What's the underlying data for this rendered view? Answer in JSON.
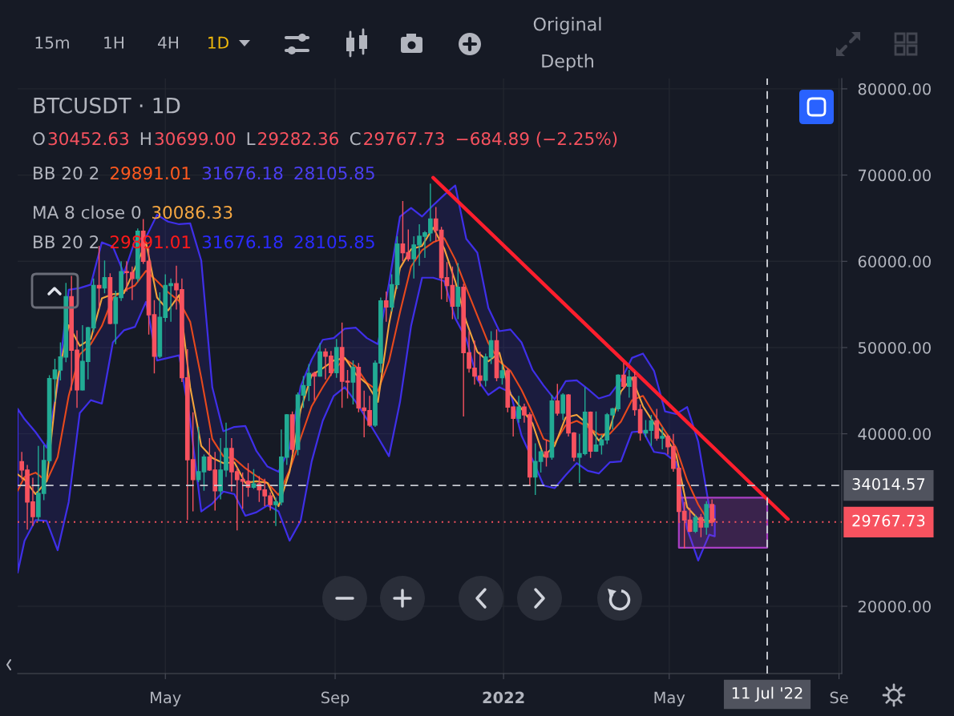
{
  "chart_data": {
    "type": "candlestick",
    "title": "BTCUSDT · 1D",
    "x": [
      "2021-01-17",
      "2021-01-21",
      "2021-01-25",
      "2021-01-29",
      "2021-02-02",
      "2021-02-06",
      "2021-02-10",
      "2021-02-14",
      "2021-02-18",
      "2021-02-22",
      "2021-02-26",
      "2021-03-02",
      "2021-03-06",
      "2021-03-10",
      "2021-03-14",
      "2021-03-18",
      "2021-03-22",
      "2021-03-26",
      "2021-03-30",
      "2021-04-03",
      "2021-04-07",
      "2021-04-11",
      "2021-04-15",
      "2021-04-19",
      "2021-04-23",
      "2021-04-27",
      "2021-05-01",
      "2021-05-05",
      "2021-05-09",
      "2021-05-13",
      "2021-05-17",
      "2021-05-21",
      "2021-05-25",
      "2021-05-29",
      "2021-06-02",
      "2021-06-06",
      "2021-06-10",
      "2021-06-14",
      "2021-06-18",
      "2021-06-22",
      "2021-06-26",
      "2021-06-30",
      "2021-07-04",
      "2021-07-08",
      "2021-07-12",
      "2021-07-16",
      "2021-07-20",
      "2021-07-24",
      "2021-07-28",
      "2021-08-01",
      "2021-08-05",
      "2021-08-09",
      "2021-08-13",
      "2021-08-17",
      "2021-08-21",
      "2021-08-25",
      "2021-08-29",
      "2021-09-02",
      "2021-09-06",
      "2021-09-10",
      "2021-09-14",
      "2021-09-18",
      "2021-09-22",
      "2021-09-26",
      "2021-09-30",
      "2021-10-04",
      "2021-10-08",
      "2021-10-12",
      "2021-10-16",
      "2021-10-20",
      "2021-10-24",
      "2021-10-28",
      "2021-11-01",
      "2021-11-05",
      "2021-11-09",
      "2021-11-13",
      "2021-11-17",
      "2021-11-21",
      "2021-11-25",
      "2021-11-29",
      "2021-12-03",
      "2021-12-07",
      "2021-12-11",
      "2021-12-15",
      "2021-12-19",
      "2021-12-23",
      "2021-12-27",
      "2021-12-31",
      "2022-01-04",
      "2022-01-08",
      "2022-01-12",
      "2022-01-16",
      "2022-01-20",
      "2022-01-24",
      "2022-01-28",
      "2022-02-01",
      "2022-02-05",
      "2022-02-09",
      "2022-02-13",
      "2022-02-17",
      "2022-02-21",
      "2022-02-25",
      "2022-03-01",
      "2022-03-05",
      "2022-03-09",
      "2022-03-13",
      "2022-03-17",
      "2022-03-21",
      "2022-03-25",
      "2022-03-29",
      "2022-04-02",
      "2022-04-06",
      "2022-04-10",
      "2022-04-14",
      "2022-04-18",
      "2022-04-22",
      "2022-04-26",
      "2022-04-30",
      "2022-05-04",
      "2022-05-08",
      "2022-05-12",
      "2022-05-16",
      "2022-05-20",
      "2022-05-24",
      "2022-05-28",
      "2022-06-01"
    ],
    "ohlc": [
      [
        36770,
        37900,
        34700,
        35800
      ],
      [
        35800,
        36400,
        28900,
        32100
      ],
      [
        32100,
        34900,
        29300,
        30400
      ],
      [
        30400,
        38600,
        29900,
        33100
      ],
      [
        33100,
        38700,
        32300,
        36900
      ],
      [
        36900,
        46800,
        36600,
        46400
      ],
      [
        46400,
        48700,
        43700,
        47400
      ],
      [
        47400,
        50600,
        46200,
        48900
      ],
      [
        48900,
        57500,
        48300,
        55900
      ],
      [
        55900,
        58300,
        45000,
        49700
      ],
      [
        49700,
        52000,
        43000,
        45100
      ],
      [
        45100,
        52600,
        45000,
        48400
      ],
      [
        48400,
        52400,
        46300,
        52300
      ],
      [
        52300,
        58000,
        51800,
        57200
      ],
      [
        57200,
        61800,
        54500,
        56900
      ],
      [
        56900,
        60100,
        56300,
        58100
      ],
      [
        58100,
        58600,
        52700,
        52800
      ],
      [
        52800,
        56600,
        50400,
        55800
      ],
      [
        55800,
        60000,
        55400,
        58800
      ],
      [
        58800,
        60000,
        56500,
        58700
      ],
      [
        58700,
        59400,
        55500,
        58000
      ],
      [
        58000,
        63800,
        57600,
        63500
      ],
      [
        63500,
        64900,
        59700,
        60000
      ],
      [
        60000,
        61500,
        51500,
        53800
      ],
      [
        53800,
        55500,
        47000,
        49000
      ],
      [
        49000,
        56400,
        48800,
        53500
      ],
      [
        53500,
        58500,
        53000,
        57200
      ],
      [
        57200,
        58000,
        53000,
        57400
      ],
      [
        57400,
        59500,
        54400,
        56700
      ],
      [
        56700,
        58000,
        46000,
        46500
      ],
      [
        46500,
        49800,
        30000,
        37000
      ],
      [
        37000,
        42500,
        31000,
        34700
      ],
      [
        34700,
        40800,
        34400,
        35600
      ],
      [
        35600,
        37600,
        33400,
        37300
      ],
      [
        37300,
        39500,
        35700,
        35800
      ],
      [
        35800,
        37900,
        31100,
        33400
      ],
      [
        33400,
        39500,
        32400,
        35800
      ],
      [
        35800,
        41300,
        35000,
        38300
      ],
      [
        38300,
        39500,
        33300,
        35600
      ],
      [
        35600,
        36100,
        28800,
        34700
      ],
      [
        34700,
        35500,
        31300,
        34500
      ],
      [
        34500,
        36600,
        32700,
        33800
      ],
      [
        33800,
        35900,
        33600,
        34200
      ],
      [
        34200,
        35100,
        32100,
        33500
      ],
      [
        33500,
        34800,
        31600,
        32800
      ],
      [
        32800,
        33200,
        31100,
        31800
      ],
      [
        31800,
        32600,
        29300,
        32100
      ],
      [
        32100,
        40500,
        31700,
        37300
      ],
      [
        37300,
        42300,
        36400,
        42200
      ],
      [
        42200,
        42600,
        37600,
        38200
      ],
      [
        38200,
        44800,
        37500,
        44500
      ],
      [
        44500,
        46700,
        43000,
        45600
      ],
      [
        45600,
        48100,
        43800,
        47000
      ],
      [
        47000,
        47200,
        43900,
        46700
      ],
      [
        46700,
        50500,
        46600,
        49500
      ],
      [
        49500,
        49900,
        46300,
        49000
      ],
      [
        49000,
        49600,
        46700,
        47100
      ],
      [
        47100,
        51000,
        46500,
        50000
      ],
      [
        50000,
        52900,
        43000,
        46100
      ],
      [
        46100,
        47400,
        44100,
        46000
      ],
      [
        46000,
        48500,
        43400,
        47700
      ],
      [
        47700,
        48200,
        42500,
        43000
      ],
      [
        43000,
        45000,
        39600,
        42700
      ],
      [
        42700,
        44400,
        40800,
        41000
      ],
      [
        41000,
        48500,
        40800,
        48200
      ],
      [
        48200,
        55800,
        47100,
        55400
      ],
      [
        55400,
        56500,
        53000,
        54700
      ],
      [
        54700,
        58500,
        54200,
        57300
      ],
      [
        57300,
        62900,
        56800,
        62000
      ],
      [
        62000,
        67000,
        60000,
        61000
      ],
      [
        61000,
        63700,
        60000,
        60300
      ],
      [
        60300,
        62900,
        58000,
        61900
      ],
      [
        61900,
        64300,
        59500,
        62900
      ],
      [
        62900,
        63500,
        60400,
        63300
      ],
      [
        63300,
        69000,
        62300,
        64900
      ],
      [
        64900,
        66300,
        62300,
        63600
      ],
      [
        63600,
        64000,
        55600,
        58100
      ],
      [
        58100,
        59900,
        55300,
        57200
      ],
      [
        57200,
        59400,
        53300,
        54800
      ],
      [
        54800,
        59800,
        53300,
        57000
      ],
      [
        57000,
        57400,
        42000,
        49400
      ],
      [
        49400,
        51900,
        47100,
        47600
      ],
      [
        47600,
        50800,
        45700,
        46700
      ],
      [
        46700,
        49500,
        45500,
        46200
      ],
      [
        46200,
        49300,
        45500,
        48900
      ],
      [
        48900,
        51900,
        48100,
        50800
      ],
      [
        50800,
        52100,
        46100,
        46500
      ],
      [
        46500,
        48000,
        45700,
        47300
      ],
      [
        47300,
        47600,
        42500,
        43100
      ],
      [
        43100,
        43200,
        39700,
        41800
      ],
      [
        41800,
        44400,
        41300,
        43100
      ],
      [
        43100,
        43500,
        41300,
        42200
      ],
      [
        42200,
        42500,
        34000,
        35000
      ],
      [
        35000,
        38900,
        32900,
        36800
      ],
      [
        36800,
        38200,
        35500,
        37900
      ],
      [
        37900,
        39300,
        36200,
        37300
      ],
      [
        37300,
        44500,
        37000,
        43800
      ],
      [
        43800,
        45800,
        42100,
        42400
      ],
      [
        42400,
        44700,
        41600,
        44500
      ],
      [
        44500,
        44600,
        39700,
        40100
      ],
      [
        40100,
        40200,
        36800,
        37300
      ],
      [
        37300,
        40000,
        34300,
        37700
      ],
      [
        37700,
        45400,
        37500,
        42500
      ],
      [
        42500,
        42600,
        37200,
        38000
      ],
      [
        38000,
        42600,
        37900,
        38700
      ],
      [
        38700,
        39900,
        37600,
        39300
      ],
      [
        39300,
        42400,
        38800,
        42200
      ],
      [
        42200,
        43000,
        40500,
        42900
      ],
      [
        42900,
        46900,
        42600,
        46800
      ],
      [
        46800,
        48200,
        45200,
        45500
      ],
      [
        45500,
        47400,
        44200,
        46600
      ],
      [
        46600,
        47200,
        42100,
        42800
      ],
      [
        42800,
        43400,
        39200,
        40100
      ],
      [
        40100,
        41600,
        39600,
        40400
      ],
      [
        40400,
        42200,
        38600,
        41500
      ],
      [
        41500,
        42900,
        39200,
        39500
      ],
      [
        39500,
        40800,
        38200,
        39700
      ],
      [
        39700,
        39900,
        37600,
        38500
      ],
      [
        38500,
        40000,
        35600,
        36000
      ],
      [
        36000,
        36100,
        29700,
        31000
      ],
      [
        31000,
        32100,
        26700,
        30000
      ],
      [
        30000,
        31400,
        28600,
        28700
      ],
      [
        28700,
        30600,
        28500,
        30300
      ],
      [
        30300,
        30700,
        28000,
        29200
      ],
      [
        29200,
        32200,
        28300,
        31800
      ],
      [
        31800,
        32400,
        29282.36,
        29767.73
      ]
    ],
    "colors": [
      "#f7525f",
      "#f7525f",
      "#f7525f",
      "#22ab94",
      "#22ab94",
      "#22ab94",
      "#22ab94",
      "#22ab94",
      "#22ab94",
      "#f7525f",
      "#f7525f",
      "#22ab94",
      "#22ab94",
      "#22ab94",
      "#f7525f",
      "#22ab94",
      "#f7525f",
      "#22ab94",
      "#22ab94",
      "#f7525f",
      "#f7525f",
      "#22ab94",
      "#f7525f",
      "#f7525f",
      "#f7525f",
      "#22ab94",
      "#22ab94",
      "#22ab94",
      "#f7525f",
      "#f7525f",
      "#f7525f",
      "#f7525f",
      "#22ab94",
      "#22ab94",
      "#f7525f",
      "#f7525f",
      "#22ab94",
      "#22ab94",
      "#f7525f",
      "#f7525f",
      "#f7525f",
      "#f7525f",
      "#22ab94",
      "#f7525f",
      "#f7525f",
      "#f7525f",
      "#22ab94",
      "#22ab94",
      "#22ab94",
      "#f7525f",
      "#22ab94",
      "#22ab94",
      "#22ab94",
      "#f7525f",
      "#22ab94",
      "#f7525f",
      "#f7525f",
      "#22ab94",
      "#f7525f",
      "#f7525f",
      "#22ab94",
      "#f7525f",
      "#f7525f",
      "#f7525f",
      "#22ab94",
      "#22ab94",
      "#f7525f",
      "#22ab94",
      "#22ab94",
      "#f7525f",
      "#f7525f",
      "#22ab94",
      "#22ab94",
      "#22ab94",
      "#22ab94",
      "#f7525f",
      "#f7525f",
      "#f7525f",
      "#f7525f",
      "#22ab94",
      "#f7525f",
      "#f7525f",
      "#f7525f",
      "#f7525f",
      "#22ab94",
      "#22ab94",
      "#f7525f",
      "#22ab94",
      "#f7525f",
      "#f7525f",
      "#22ab94",
      "#f7525f",
      "#f7525f",
      "#22ab94",
      "#22ab94",
      "#f7525f",
      "#22ab94",
      "#f7525f",
      "#22ab94",
      "#f7525f",
      "#f7525f",
      "#22ab94",
      "#22ab94",
      "#f7525f",
      "#22ab94",
      "#22ab94",
      "#22ab94",
      "#22ab94",
      "#22ab94",
      "#f7525f",
      "#22ab94",
      "#f7525f",
      "#f7525f",
      "#22ab94",
      "#22ab94",
      "#f7525f",
      "#22ab94",
      "#f7525f",
      "#f7525f",
      "#f7525f",
      "#f7525f",
      "#f7525f",
      "#22ab94",
      "#f7525f",
      "#22ab94",
      "#f7525f"
    ],
    "series": [
      {
        "type": "line",
        "color": "#3f2fe8",
        "x": [
          "2021-01-14",
          "2021-01-19",
          "2021-01-27",
          "2021-02-04",
          "2021-02-12",
          "2021-02-20",
          "2021-02-28",
          "2021-03-08",
          "2021-03-16",
          "2021-03-24",
          "2021-04-01",
          "2021-04-09",
          "2021-04-17",
          "2021-04-25",
          "2021-05-03",
          "2021-05-11",
          "2021-05-19",
          "2021-05-27",
          "2021-06-04",
          "2021-06-12",
          "2021-06-20",
          "2021-06-28",
          "2021-07-06",
          "2021-07-14",
          "2021-07-22",
          "2021-07-30",
          "2021-08-07",
          "2021-08-15",
          "2021-08-23",
          "2021-08-31",
          "2021-09-08",
          "2021-09-16",
          "2021-09-24",
          "2021-10-02",
          "2021-10-10",
          "2021-10-18",
          "2021-10-26",
          "2021-11-03",
          "2021-11-11",
          "2021-11-19",
          "2021-11-27",
          "2021-12-05",
          "2021-12-13",
          "2021-12-21",
          "2021-12-29",
          "2022-01-06",
          "2022-01-14",
          "2022-01-22",
          "2022-01-30",
          "2022-02-07",
          "2022-02-15",
          "2022-02-23",
          "2022-03-03",
          "2022-03-11",
          "2022-03-19",
          "2022-03-27",
          "2022-04-04",
          "2022-04-12",
          "2022-04-20",
          "2022-04-28",
          "2022-05-06",
          "2022-05-14",
          "2022-05-22",
          "2022-05-30",
          "2022-06-03"
        ],
        "values": [
          null,
          null,
          null,
          null,
          null,
          null,
          null,
          null,
          null,
          null,
          null,
          null,
          null,
          null,
          null,
          null,
          null,
          null,
          null,
          null,
          null,
          null,
          null,
          null,
          null,
          null,
          null,
          null,
          null,
          null,
          null,
          null,
          null,
          null,
          null,
          null,
          null,
          null,
          null,
          null,
          null,
          null,
          null,
          null,
          null,
          null,
          null,
          null,
          null,
          null,
          null,
          null,
          null,
          null,
          null,
          null,
          null,
          null,
          null,
          null,
          null,
          null,
          null,
          null,
          null
        ],
        "lower": [
          23900,
          27600,
          30000,
          29900,
          26500,
          32100,
          42400,
          43900,
          43500,
          50600,
          52000,
          52400,
          55300,
          48500,
          48800,
          49100,
          41500,
          31000,
          31900,
          33300,
          33000,
          30500,
          30900,
          31700,
          31000,
          27600,
          29900,
          36800,
          41500,
          44400,
          45400,
          43700,
          41700,
          39600,
          37400,
          43700,
          52500,
          58100,
          58100,
          57700,
          53400,
          51000,
          46300,
          44500,
          45400,
          44800,
          39800,
          37000,
          34000,
          33700,
          35200,
          36600,
          35700,
          35400,
          36700,
          36800,
          40200,
          40300,
          37900,
          37700,
          36700,
          29000,
          25300,
          28300,
          28105.85
        ],
        "upper": [
          42900,
          41700,
          40200,
          38400,
          45600,
          56700,
          56900,
          57300,
          62200,
          61700,
          58600,
          62400,
          62800,
          65400,
          64600,
          64300,
          64400,
          60100,
          45400,
          40300,
          40800,
          40900,
          38000,
          36200,
          35600,
          38400,
          45500,
          48600,
          50900,
          51100,
          52200,
          52300,
          51100,
          50400,
          57400,
          65200,
          66200,
          65200,
          66500,
          67700,
          68800,
          62600,
          61000,
          54600,
          51900,
          52100,
          50600,
          47400,
          45600,
          44000,
          46100,
          46200,
          45200,
          44100,
          44500,
          46200,
          48800,
          49300,
          47300,
          42600,
          42300,
          43100,
          39100,
          31500,
          31676.18
        ]
      },
      {
        "type": "line",
        "color": "#e8491d",
        "x": [
          "2021-01-14",
          "2021-01-19",
          "2021-01-27",
          "2021-02-04",
          "2021-02-12",
          "2021-02-20",
          "2021-02-28",
          "2021-03-08",
          "2021-03-16",
          "2021-03-24",
          "2021-04-01",
          "2021-04-09",
          "2021-04-17",
          "2021-04-25",
          "2021-05-03",
          "2021-05-11",
          "2021-05-19",
          "2021-05-27",
          "2021-06-04",
          "2021-06-12",
          "2021-06-20",
          "2021-06-28",
          "2021-07-06",
          "2021-07-14",
          "2021-07-22",
          "2021-07-30",
          "2021-08-07",
          "2021-08-15",
          "2021-08-23",
          "2021-08-31",
          "2021-09-08",
          "2021-09-16",
          "2021-09-24",
          "2021-10-02",
          "2021-10-10",
          "2021-10-18",
          "2021-10-26",
          "2021-11-03",
          "2021-11-11",
          "2021-11-19",
          "2021-11-27",
          "2021-12-05",
          "2021-12-13",
          "2021-12-21",
          "2021-12-29",
          "2022-01-06",
          "2022-01-14",
          "2022-01-22",
          "2022-01-30",
          "2022-02-07",
          "2022-02-15",
          "2022-02-23",
          "2022-03-03",
          "2022-03-11",
          "2022-03-19",
          "2022-03-27",
          "2022-04-04",
          "2022-04-12",
          "2022-04-20",
          "2022-04-28",
          "2022-05-06",
          "2022-05-14",
          "2022-05-22",
          "2022-05-30",
          "2022-06-03"
        ],
        "values": [
          33400,
          35000,
          35500,
          34500,
          37300,
          44400,
          49200,
          50400,
          52500,
          55800,
          56600,
          57200,
          58900,
          57700,
          56400,
          55400,
          53000,
          46500,
          39400,
          37400,
          37100,
          36000,
          35100,
          34300,
          32900,
          35800,
          39500,
          43200,
          45400,
          47400,
          48700,
          47800,
          45900,
          45000,
          48400,
          54100,
          59400,
          61300,
          62200,
          62700,
          60200,
          56900,
          53700,
          50500,
          48400,
          47300,
          45100,
          42400,
          39400,
          38900,
          41000,
          41500,
          40800,
          39900,
          40000,
          41400,
          43900,
          44400,
          42300,
          40300,
          38400,
          34600,
          31800,
          29700,
          29891.01
        ]
      },
      {
        "type": "line",
        "color": "#f3a33b",
        "x": [
          "2021-01-14",
          "2021-01-19",
          "2021-01-27",
          "2021-02-04",
          "2021-02-12",
          "2021-02-20",
          "2021-02-28",
          "2021-03-08",
          "2021-03-16",
          "2021-03-24",
          "2021-04-01",
          "2021-04-09",
          "2021-04-17",
          "2021-04-25",
          "2021-05-03",
          "2021-05-11",
          "2021-05-19",
          "2021-05-27",
          "2021-06-04",
          "2021-06-12",
          "2021-06-20",
          "2021-06-28",
          "2021-07-06",
          "2021-07-14",
          "2021-07-22",
          "2021-07-30",
          "2021-08-07",
          "2021-08-15",
          "2021-08-23",
          "2021-08-31",
          "2021-09-08",
          "2021-09-16",
          "2021-09-24",
          "2021-10-02",
          "2021-10-10",
          "2021-10-18",
          "2021-10-26",
          "2021-11-03",
          "2021-11-11",
          "2021-11-19",
          "2021-11-27",
          "2021-12-05",
          "2021-12-13",
          "2021-12-21",
          "2021-12-29",
          "2022-01-06",
          "2022-01-14",
          "2022-01-22",
          "2022-01-30",
          "2022-02-07",
          "2022-02-15",
          "2022-02-23",
          "2022-03-03",
          "2022-03-11",
          "2022-03-19",
          "2022-03-27",
          "2022-04-04",
          "2022-04-12",
          "2022-04-20",
          "2022-04-28",
          "2022-05-06",
          "2022-05-14",
          "2022-05-22",
          "2022-05-30",
          "2022-06-03"
        ],
        "values": [
          35300,
          34700,
          33000,
          34500,
          46400,
          52600,
          50200,
          51000,
          55700,
          56200,
          56300,
          59200,
          62200,
          55800,
          54300,
          56100,
          45400,
          38600,
          37200,
          36600,
          36700,
          34300,
          34500,
          34300,
          31600,
          35600,
          42800,
          46800,
          47600,
          48500,
          48800,
          46900,
          45800,
          43700,
          52700,
          59200,
          61400,
          61800,
          63900,
          61500,
          57700,
          53000,
          49500,
          48400,
          49400,
          44600,
          42900,
          41200,
          37400,
          38600,
          41900,
          42200,
          41100,
          39200,
          40600,
          44900,
          46500,
          43200,
          41200,
          39800,
          37600,
          31500,
          30100,
          29900,
          30086.33
        ]
      },
      {
        "type": "line",
        "color": "#ff1e2d",
        "x": [
          "2021-11-11",
          "2022-07-26"
        ],
        "values": [
          69700,
          30100
        ]
      },
      {
        "type": "line",
        "color": "#a93fc4",
        "x": [
          "2022-05-08",
          "2022-07-11"
        ],
        "values": [
          null,
          null
        ],
        "lower": [
          26800,
          26800
        ],
        "upper": [
          32600,
          32600
        ]
      }
    ],
    "xlim": [
      "2021-01-14",
      "2022-09-03"
    ],
    "xticks": [
      {
        "value": "2021-05-01",
        "label": "May"
      },
      {
        "value": "2021-09-01",
        "label": "Sep"
      },
      {
        "value": "2022-01-01",
        "label": "2022"
      },
      {
        "value": "2022-05-01",
        "label": "May"
      },
      {
        "value": "2022-09-01",
        "label": "Se"
      }
    ],
    "ylim": [
      12200,
      81200
    ],
    "yticks": [
      {
        "value": 20000,
        "label": "20000.00"
      },
      {
        "value": 40000,
        "label": "40000.00"
      },
      {
        "value": 50000,
        "label": "50000.00"
      },
      {
        "value": 60000,
        "label": "60000.00"
      },
      {
        "value": 70000,
        "label": "70000.00"
      },
      {
        "value": 80000,
        "label": "80000.00"
      }
    ],
    "grid": true,
    "ref_lines": [
      {
        "axis": "y",
        "value": 34014.57,
        "label": "34014.57",
        "color": "#c7cad1",
        "line_style": "dashed"
      },
      {
        "axis": "y",
        "value": 29767.73,
        "label": "29767.73",
        "color": "#f7525f",
        "line_style": "dotted"
      },
      {
        "axis": "x",
        "value": "2022-07-11",
        "label": "11 Jul '22",
        "color": "#c7cad1",
        "line_style": "dashed"
      }
    ],
    "annotations": [
      "O",
      "30452.63",
      "H",
      "30699.00",
      "L",
      "29282.36",
      "C",
      "29767.73",
      "−684.89 (−2.25%)",
      "BB 20 2",
      "29891.01",
      "31676.18",
      "28105.85",
      "MA 8 close 0",
      "30086.33",
      "BB 20 2",
      "29891.01",
      "31676.18",
      "28105.85",
      "15m",
      "1H",
      "4H",
      "1D",
      "Original",
      "Depth"
    ]
  }
}
